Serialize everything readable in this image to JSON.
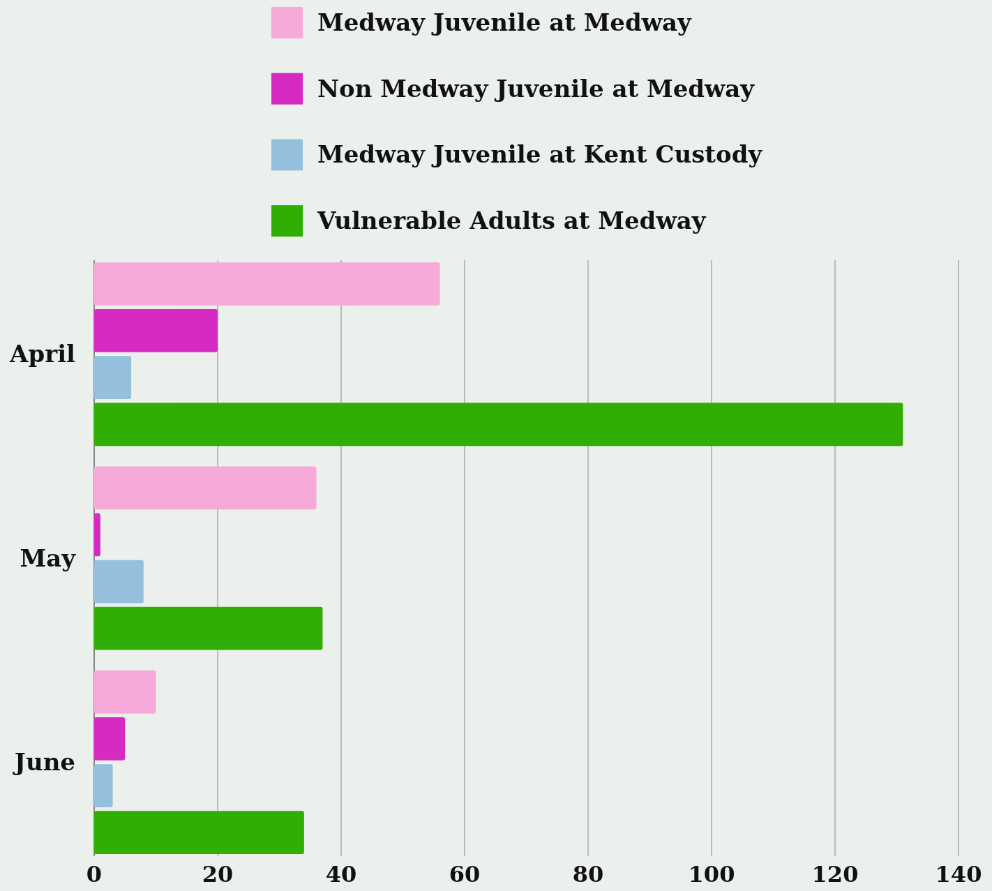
{
  "chart_data": {
    "type": "bar",
    "orientation": "horizontal",
    "categories": [
      "April",
      "May",
      "June"
    ],
    "series": [
      {
        "name": "Medway Juvenile at Medway",
        "color": "#f7a9d9",
        "values": [
          56,
          36,
          10
        ]
      },
      {
        "name": "Non Medway Juvenile at Medway",
        "color": "#d62ac2",
        "values": [
          20,
          1,
          5
        ]
      },
      {
        "name": "Medway Juvenile at Kent Custody",
        "color": "#94c0de",
        "values": [
          6,
          8,
          3
        ]
      },
      {
        "name": "Vulnerable Adults at Medway",
        "color": "#30ae03",
        "values": [
          131,
          37,
          34
        ]
      }
    ],
    "xlim": [
      0,
      140
    ],
    "xticks": [
      0,
      20,
      40,
      60,
      80,
      100,
      120,
      140
    ],
    "grid": "x",
    "legend": "top"
  }
}
